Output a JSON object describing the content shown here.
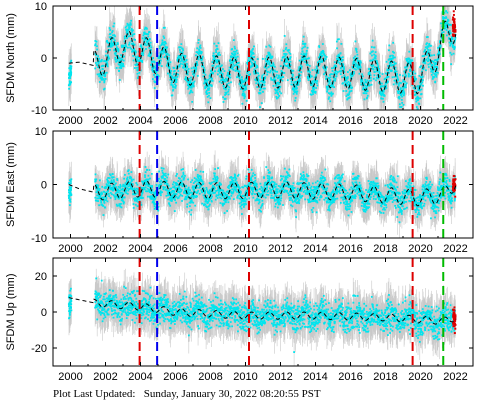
{
  "footer": {
    "label": "Plot Last Updated:",
    "timestamp": "Sunday, January 30, 2022 08:20:55 PST"
  },
  "colors": {
    "data_points": "#00e5ee",
    "error_bars": "#b3b3b3",
    "model_fit": "#000000",
    "event_red": "#dd0000",
    "event_blue": "#0000ee",
    "event_green": "#00bb00",
    "recent_points": "#dd0000"
  },
  "chart_data": [
    {
      "type": "scatter",
      "ylabel": "SFDM North (mm)",
      "xlim": [
        1999.0,
        2023.0
      ],
      "ylim": [
        -10,
        10
      ],
      "yticks": [
        -10,
        0,
        10
      ],
      "xticks": [
        2000,
        2002,
        2004,
        2006,
        2008,
        2010,
        2012,
        2014,
        2016,
        2018,
        2020,
        2022
      ],
      "trend": [
        [
          1999.9,
          -1.0
        ],
        [
          2000.5,
          -0.8
        ],
        [
          2001.4,
          -1.5
        ],
        [
          2003.0,
          2.5
        ],
        [
          2004.0,
          1.5
        ],
        [
          2006.0,
          -2.0
        ],
        [
          2010.0,
          -3.0
        ],
        [
          2014.0,
          -2.5
        ],
        [
          2018.0,
          -3.5
        ],
        [
          2019.8,
          -4.0
        ],
        [
          2021.0,
          1.0
        ],
        [
          2021.5,
          5.0
        ],
        [
          2022.0,
          6.0
        ]
      ],
      "seasonal_amplitude": 3.0,
      "scatter_sd": 2.5,
      "event_lines": [
        {
          "x": 2003.95,
          "color": "red"
        },
        {
          "x": 2004.95,
          "color": "blue"
        },
        {
          "x": 2010.2,
          "color": "red"
        },
        {
          "x": 2019.55,
          "color": "red"
        },
        {
          "x": 2021.3,
          "color": "green"
        }
      ]
    },
    {
      "type": "scatter",
      "ylabel": "SFDM East (mm)",
      "xlim": [
        1999.0,
        2023.0
      ],
      "ylim": [
        -10,
        10
      ],
      "yticks": [
        -10,
        0,
        10
      ],
      "xticks": [
        2000,
        2002,
        2004,
        2006,
        2008,
        2010,
        2012,
        2014,
        2016,
        2018,
        2020,
        2022
      ],
      "trend": [
        [
          1999.9,
          0.0
        ],
        [
          2000.5,
          -0.8
        ],
        [
          2001.4,
          -1.5
        ],
        [
          2004.0,
          -0.8
        ],
        [
          2008.0,
          -1.2
        ],
        [
          2012.0,
          -1.0
        ],
        [
          2016.0,
          -1.5
        ],
        [
          2019.8,
          -2.5
        ],
        [
          2021.3,
          -2.0
        ],
        [
          2022.0,
          0.5
        ]
      ],
      "seasonal_amplitude": 1.5,
      "scatter_sd": 2.2,
      "event_lines": [
        {
          "x": 2003.95,
          "color": "red"
        },
        {
          "x": 2004.95,
          "color": "blue"
        },
        {
          "x": 2010.2,
          "color": "red"
        },
        {
          "x": 2019.55,
          "color": "red"
        },
        {
          "x": 2021.3,
          "color": "green"
        }
      ]
    },
    {
      "type": "scatter",
      "ylabel": "SFDM Up (mm)",
      "xlim": [
        1999.0,
        2023.0
      ],
      "ylim": [
        -30,
        30
      ],
      "yticks": [
        -20,
        0,
        20
      ],
      "xticks": [
        2000,
        2002,
        2004,
        2006,
        2008,
        2010,
        2012,
        2014,
        2016,
        2018,
        2020,
        2022
      ],
      "trend": [
        [
          1999.9,
          8.0
        ],
        [
          2001.4,
          5.0
        ],
        [
          2004.0,
          3.0
        ],
        [
          2006.0,
          0.0
        ],
        [
          2010.0,
          -2.0
        ],
        [
          2014.0,
          -2.0
        ],
        [
          2018.0,
          -3.0
        ],
        [
          2021.3,
          -5.0
        ],
        [
          2022.0,
          -3.0
        ]
      ],
      "seasonal_amplitude": 2.0,
      "scatter_sd": 7.0,
      "event_lines": [
        {
          "x": 2003.95,
          "color": "red"
        },
        {
          "x": 2004.95,
          "color": "blue"
        },
        {
          "x": 2010.2,
          "color": "red"
        },
        {
          "x": 2019.55,
          "color": "red"
        },
        {
          "x": 2021.3,
          "color": "green"
        }
      ]
    }
  ]
}
